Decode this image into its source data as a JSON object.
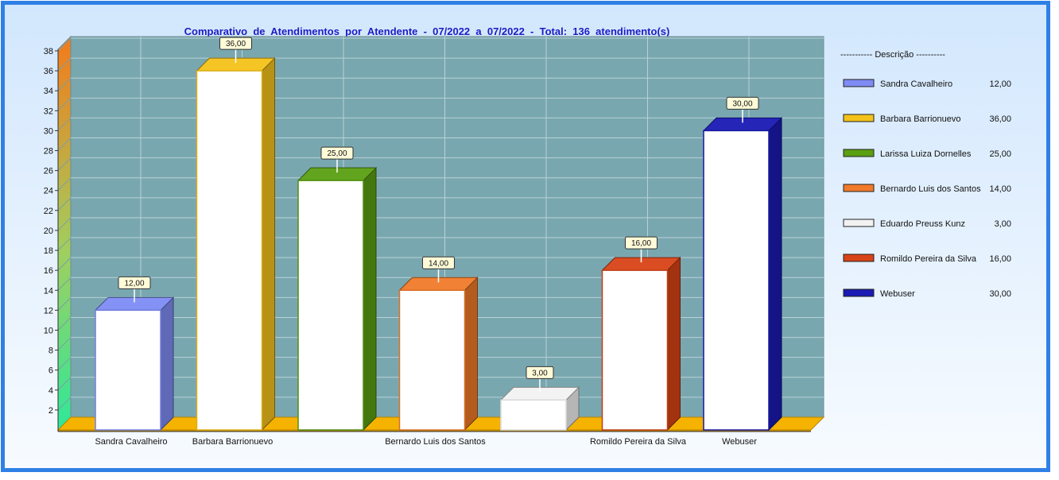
{
  "chart_data": {
    "type": "bar",
    "title": "Comparativo  de  Atendimentos  por  Atendente  -  07/2022  a  07/2022  -  Total:  136  atendimento(s)",
    "categories": [
      "Sandra Cavalheiro",
      "Barbara Barrionuevo",
      "Larissa Luiza Dornelles",
      "Bernardo Luis dos Santos",
      "Eduardo Preuss Kunz",
      "Romildo Pereira da Silva",
      "Webuser"
    ],
    "axis_category_labels": [
      "Sandra Cavalheiro",
      "Barbara Barrionuevo",
      "",
      "Bernardo Luis dos Santos",
      "",
      "Romildo Pereira da Silva",
      "Webuser"
    ],
    "values": [
      12,
      36,
      25,
      14,
      3,
      16,
      30
    ],
    "value_labels": [
      "12,00",
      "36,00",
      "25,00",
      "14,00",
      "3,00",
      "16,00",
      "30,00"
    ],
    "colors": [
      "#7f8cf4",
      "#f4c21a",
      "#5a9f12",
      "#f07a2a",
      "#f2f2f2",
      "#d84416",
      "#1a1ab4"
    ],
    "ylim": [
      0,
      38
    ],
    "yticks": [
      "2",
      "4",
      "6",
      "8",
      "10",
      "12",
      "14",
      "16",
      "18",
      "20",
      "22",
      "24",
      "26",
      "28",
      "30",
      "32",
      "34",
      "36",
      "38"
    ],
    "grid": true,
    "legend_position": "right",
    "legend_header": "----------- Descrição ----------",
    "legend_values": [
      "12,00",
      "36,00",
      "25,00",
      "14,00",
      "3,00",
      "16,00",
      "30,00"
    ],
    "xlabel": "",
    "ylabel": ""
  },
  "colors": {
    "frame": "#2f80e6",
    "plot_background": "#79a7b0",
    "floor": "#f5b300",
    "grid": "#b9d2d6",
    "title": "#1c1cc4"
  }
}
